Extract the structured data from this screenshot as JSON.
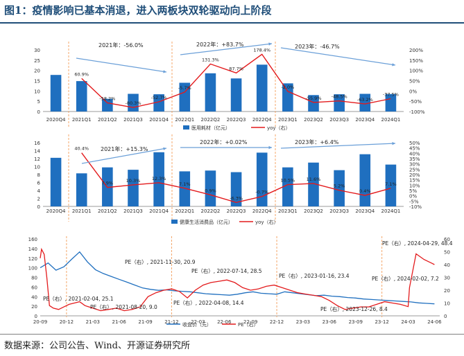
{
  "title": "图1：疫情影响已基本消退，进入两板块双轮驱动向上阶段",
  "source": "数据来源：公司公告、Wind、开源证券研究所",
  "colors": {
    "bar": "#1f6fbf",
    "line": "#e31a1c",
    "trend": "#6a9fd8",
    "trend_text": "#222222",
    "price": "#1f6fbf",
    "pe": "#e31a1c",
    "divider": "#f4a76a",
    "axis": "#555555"
  },
  "chart_data": [
    {
      "type": "bar",
      "panel": "top",
      "categories": [
        "2020Q4",
        "2021Q1",
        "2021Q2",
        "2021Q3",
        "2021Q4",
        "2022Q1",
        "2022Q2",
        "2022Q3",
        "2022Q4",
        "2023Q1",
        "2023Q2",
        "2023Q3",
        "2023Q4",
        "2024Q1"
      ],
      "series": [
        {
          "name": "医用耗材（亿元）",
          "axis": "left",
          "kind": "bar",
          "values": [
            17.8,
            14.8,
            6.2,
            8.6,
            8.4,
            14.0,
            18.6,
            16.1,
            22.8,
            13.7,
            8.0,
            8.4,
            8.6,
            8.5
          ]
        },
        {
          "name": "yoy（右）",
          "axis": "right",
          "kind": "line",
          "values": [
            null,
            60.9,
            -58.2,
            -80.3,
            -52.7,
            -5.7,
            131.3,
            87.7,
            178.4,
            -2.0,
            -55.9,
            -48.5,
            -63.2,
            -37.5
          ]
        }
      ],
      "data_labels": [
        "",
        "60.9%",
        "-58.2%",
        "-80.3%",
        "-52.7%",
        "-5.7%",
        "131.3%",
        "87.7%",
        "178.4%",
        "-2.0%",
        "-55.9%",
        "-48.5%",
        "-63.2%",
        "-37.5%"
      ],
      "yticks_left": [
        "0",
        "5",
        "10",
        "15",
        "20",
        "25",
        "30"
      ],
      "yticks_right": [
        "-100%",
        "-50%",
        "0%",
        "50%",
        "100%",
        "150%",
        "200%"
      ],
      "ylim_left": [
        0,
        30
      ],
      "ylim_right": [
        -100,
        200
      ],
      "annotations": [
        "2021年：-56.0%",
        "2022年：+83.7%",
        "2023年：-46.7%"
      ],
      "legend": [
        "医用耗材（亿元）",
        "yoy（右）"
      ]
    },
    {
      "type": "bar",
      "panel": "middle",
      "categories": [
        "2020Q4",
        "2021Q1",
        "2021Q2",
        "2021Q3",
        "2021Q4",
        "2022Q1",
        "2022Q2",
        "2022Q3",
        "2022Q4",
        "2023Q1",
        "2023Q2",
        "2023Q3",
        "2023Q4",
        "2024Q1"
      ],
      "series": [
        {
          "name": "健康生活消费品（亿元）",
          "axis": "left",
          "kind": "bar",
          "values": [
            12.2,
            8.3,
            9.8,
            9.2,
            13.6,
            8.8,
            9.0,
            8.6,
            13.5,
            9.8,
            11.0,
            9.1,
            13.1,
            10.5
          ]
        },
        {
          "name": "yoy（右）",
          "axis": "right",
          "kind": "line",
          "values": [
            null,
            40.4,
            7.9,
            10.3,
            12.3,
            7.1,
            0.9,
            -6.3,
            -0.7,
            10.5,
            11.6,
            5.2,
            0.4,
            7.1
          ]
        }
      ],
      "data_labels": [
        "",
        "40.4%",
        "7.9%",
        "10.3%",
        "12.3%",
        "7.1%",
        "0.9%",
        "-6.3%",
        "-0.7%",
        "10.5%",
        "11.6%",
        "5.2%",
        "0.4%",
        "7.1%"
      ],
      "yticks_left": [
        "0",
        "2",
        "4",
        "6",
        "8",
        "10",
        "12",
        "14",
        "16"
      ],
      "yticks_right": [
        "-10%",
        "-5%",
        "0%",
        "5%",
        "10%",
        "15%",
        "20%",
        "25%",
        "30%",
        "35%",
        "40%",
        "45%",
        "50%"
      ],
      "ylim_left": [
        0,
        16
      ],
      "ylim_right": [
        -10,
        50
      ],
      "annotations": [
        "2021年：+15.3%",
        "2022年：+0.02%",
        "2023年：+6.4%"
      ],
      "legend": [
        "健康生活消费品（亿元）",
        "yoy（右）"
      ]
    },
    {
      "type": "line",
      "panel": "bottom",
      "x_labels": [
        "20-09",
        "20-12",
        "21-03",
        "21-06",
        "21-09",
        "21-12",
        "22-03",
        "22-06",
        "22-09",
        "22-12",
        "23-03",
        "23-06",
        "23-09",
        "23-12",
        "24-03",
        "24-06"
      ],
      "x_range": [
        0,
        15.2
      ],
      "ylim_left": [
        0,
        160
      ],
      "ylim_right": [
        0,
        60
      ],
      "yticks_left": [
        "0",
        "20",
        "40",
        "60",
        "80",
        "100",
        "120",
        "140",
        "160"
      ],
      "yticks_right": [
        "0",
        "10",
        "20",
        "30",
        "40",
        "50",
        "60"
      ],
      "series": [
        {
          "name": "收盘价（元）",
          "axis": "left",
          "x": [
            0,
            0.3,
            0.6,
            0.9,
            1.2,
            1.5,
            1.8,
            2.1,
            2.4,
            2.7,
            3.0,
            3.3,
            3.6,
            3.9,
            4.2,
            4.5,
            4.8,
            5.1,
            5.4,
            5.7,
            6.0,
            6.3,
            6.6,
            6.9,
            7.2,
            7.5,
            7.8,
            8.1,
            8.4,
            8.7,
            9.0,
            9.3,
            9.6,
            9.9,
            10.2,
            10.5,
            10.8,
            11.1,
            11.4,
            11.7,
            12.0,
            12.3,
            12.6,
            12.9,
            13.2,
            13.5,
            13.8,
            14.1,
            14.4,
            14.7,
            15.0
          ],
          "values": [
            100,
            110,
            95,
            102,
            118,
            133,
            112,
            96,
            88,
            82,
            76,
            70,
            64,
            58,
            55,
            53,
            54,
            52,
            51,
            50,
            48,
            46,
            45,
            44,
            43,
            45,
            48,
            50,
            47,
            46,
            45,
            50,
            48,
            46,
            44,
            42,
            43,
            41,
            40,
            38,
            37,
            35,
            34,
            33,
            32,
            31,
            30,
            29,
            27,
            26,
            25
          ]
        },
        {
          "name": "PE（右）",
          "axis": "right",
          "x": [
            0,
            0.05,
            0.15,
            0.25,
            0.35,
            0.5,
            0.7,
            0.9,
            1.1,
            1.3,
            1.5,
            1.7,
            2.0,
            2.3,
            2.6,
            2.9,
            3.2,
            3.5,
            3.8,
            4.1,
            4.4,
            4.7,
            5.0,
            5.3,
            5.6,
            5.9,
            6.2,
            6.5,
            6.8,
            7.1,
            7.4,
            7.7,
            8.0,
            8.3,
            8.6,
            8.9,
            9.2,
            9.5,
            9.8,
            10.1,
            10.4,
            10.7,
            11.0,
            11.3,
            11.6,
            11.9,
            12.2,
            12.5,
            12.8,
            13.1,
            13.4,
            13.7,
            14.0,
            14.05,
            14.3,
            14.6,
            14.9,
            15.0
          ],
          "values": [
            45,
            52,
            48,
            30,
            8,
            6,
            5,
            7,
            9,
            10,
            11,
            8,
            6,
            4,
            5,
            6,
            4,
            5,
            7,
            15,
            18,
            20,
            21,
            19,
            14,
            20,
            24,
            26,
            27,
            28,
            26,
            22,
            20,
            21,
            23,
            24,
            22,
            20,
            18,
            17,
            16,
            15,
            12,
            8,
            5,
            6,
            7,
            7,
            9,
            11,
            10,
            9,
            7.2,
            22,
            48.4,
            44,
            41,
            40
          ]
        }
      ],
      "annotations": [
        "PE（右）, 2021-11-30, 20.9",
        "PE（右）, 2022-07-14, 28.5",
        "PE（右）, 2023-01-16, 23.4",
        "PE（右）, 2024-04-29, 48.4",
        "PE（右）, 2021-02-04, 25.1",
        "PE（右）, 2021-08-20, 9.0",
        "PE（右）, 2022-04-08, 14.4",
        "PE（右）, 2023-12-26, 8.4",
        "PE（右）, 2024-02-02, 7.2"
      ],
      "legend": [
        "收盘价（元）",
        "PE（右）"
      ]
    }
  ]
}
